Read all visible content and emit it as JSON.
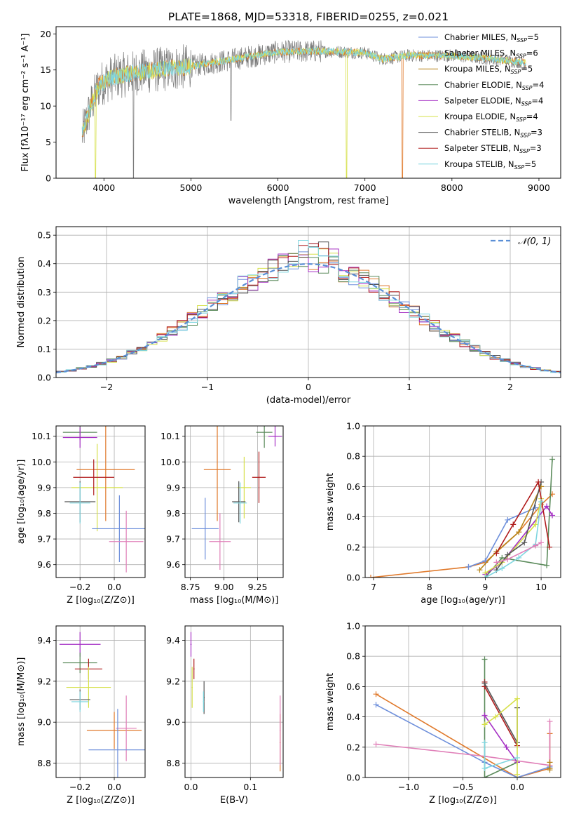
{
  "figure_title": "PLATE=1868, MJD=53318, FIBERID=0255, z=0.021",
  "colors": {
    "Chabrier MILES": "#6d8fdb",
    "Salpeter MILES": "#e07a2c",
    "Kroupa MILES": "#b8861b",
    "Chabrier ELODIE": "#5a8a5a",
    "Salpeter ELODIE": "#a52fc4",
    "Kroupa ELODIE": "#d6e04a",
    "Chabrier STELIB": "#555555",
    "Salpeter STELIB": "#b01c1c",
    "Kroupa STELIB": "#7fd6e0",
    "Extra": "#e07fb8"
  },
  "chart_data": [
    {
      "type": "line",
      "panel": "spectrum",
      "xlabel": "wavelength [Angstrom, rest frame]",
      "ylabel": "Flux [fλ10⁻¹⁷ erg cm⁻² s⁻¹ A⁻¹]",
      "xlim": [
        3450,
        9250
      ],
      "ylim": [
        0,
        21
      ],
      "xticks": [
        4000,
        5000,
        6000,
        7000,
        8000,
        9000
      ],
      "yticks": [
        0,
        5,
        10,
        15,
        20
      ],
      "legend_position": "top-right",
      "legend": [
        {
          "label": "Chabrier MILES, N",
          "sub": "SSP",
          "suffix": "=5"
        },
        {
          "label": "Salpeter MILES, N",
          "sub": "SSP",
          "suffix": "=6"
        },
        {
          "label": "Kroupa MILES, N",
          "sub": "SSP",
          "suffix": "=5"
        },
        {
          "label": "Chabrier ELODIE, N",
          "sub": "SSP",
          "suffix": "=4"
        },
        {
          "label": "Salpeter ELODIE, N",
          "sub": "SSP",
          "suffix": "=4"
        },
        {
          "label": "Kroupa ELODIE, N",
          "sub": "SSP",
          "suffix": "=4"
        },
        {
          "label": "Chabrier STELIB, N",
          "sub": "SSP",
          "suffix": "=3"
        },
        {
          "label": "Salpeter STELIB, N",
          "sub": "SSP",
          "suffix": "=3"
        },
        {
          "label": "Kroupa STELIB, N",
          "sub": "SSP",
          "suffix": "=5"
        }
      ],
      "data_range_x": [
        3750,
        8850
      ],
      "continuum": [
        [
          3750,
          6
        ],
        [
          3850,
          10
        ],
        [
          3950,
          13
        ],
        [
          4100,
          14
        ],
        [
          4300,
          14.5
        ],
        [
          4600,
          15
        ],
        [
          5000,
          15.5
        ],
        [
          5500,
          16.5
        ],
        [
          6000,
          17.5
        ],
        [
          6500,
          17.6
        ],
        [
          7000,
          17.4
        ],
        [
          7200,
          16.5
        ],
        [
          7500,
          17
        ],
        [
          8000,
          17
        ],
        [
          8500,
          16.5
        ],
        [
          8850,
          16
        ]
      ]
    },
    {
      "type": "line",
      "panel": "residual-histogram",
      "xlabel": "(data-model)/error",
      "ylabel": "Normed distribution",
      "xlim": [
        -2.5,
        2.5
      ],
      "ylim": [
        0,
        0.53
      ],
      "xticks": [
        -2,
        -1,
        0,
        1,
        2
      ],
      "xtick_labels": [
        "−2",
        "−1",
        "0",
        "1",
        "2"
      ],
      "yticks": [
        0.0,
        0.1,
        0.2,
        0.3,
        0.4,
        0.5
      ],
      "legend_position": "top-right",
      "legend": [
        {
          "label": "𝒩(0, 1)"
        }
      ],
      "bin_width": 0.1,
      "grid": true
    },
    {
      "type": "scatter",
      "panel": "age-vs-Z",
      "xlabel": "Z [log₁₀(Z/Z⊙)]",
      "ylabel": "age  [log₁₀(age/yr)]",
      "xlim": [
        -0.34,
        0.18
      ],
      "ylim": [
        9.55,
        10.14
      ],
      "xticks": [
        -0.2,
        0.0
      ],
      "xtick_labels": [
        "−0.2",
        "0.0"
      ],
      "yticks": [
        9.6,
        9.7,
        9.8,
        9.9,
        10.0,
        10.1
      ],
      "grid": true,
      "points": [
        {
          "c": "Chabrier ELODIE",
          "x": -0.2,
          "y": 10.115,
          "xerr": 0.1,
          "yerr": 0.03
        },
        {
          "c": "Salpeter ELODIE",
          "x": -0.2,
          "y": 10.095,
          "xerr": 0.1,
          "yerr": 0.04
        },
        {
          "c": "Kroupa ELODIE",
          "x": -0.1,
          "y": 9.9,
          "xerr": 0.15,
          "yerr": 0.17
        },
        {
          "c": "Salpeter MILES",
          "x": -0.05,
          "y": 9.97,
          "xerr": 0.17,
          "yerr": 0.2
        },
        {
          "c": "Salpeter STELIB",
          "x": -0.12,
          "y": 9.94,
          "xerr": 0.12,
          "yerr": 0.07
        },
        {
          "c": "Chabrier STELIB",
          "x": -0.2,
          "y": 9.845,
          "xerr": 0.09,
          "yerr": 0.08
        },
        {
          "c": "Kroupa STELIB",
          "x": -0.2,
          "y": 9.84,
          "xerr": 0.06,
          "yerr": 0.08
        },
        {
          "c": "Chabrier MILES",
          "x": 0.03,
          "y": 9.74,
          "xerr": 0.16,
          "yerr": 0.13
        },
        {
          "c": "Extra",
          "x": 0.07,
          "y": 9.69,
          "xerr": 0.1,
          "yerr": 0.12
        }
      ]
    },
    {
      "type": "scatter",
      "panel": "age-vs-mass",
      "xlabel": "mass [log₁₀(M/M⊙)]",
      "ylabel": "",
      "xlim": [
        8.71,
        9.44
      ],
      "ylim": [
        9.55,
        10.14
      ],
      "xticks": [
        8.75,
        9.0,
        9.25
      ],
      "xtick_labels": [
        "8.75",
        "9.00",
        "9.25"
      ],
      "yticks": [
        9.6,
        9.7,
        9.8,
        9.9,
        10.0,
        10.1
      ],
      "grid": true,
      "points": [
        {
          "c": "Chabrier ELODIE",
          "x": 9.3,
          "y": 10.115,
          "xerr": 0.06,
          "yerr": 0.06
        },
        {
          "c": "Salpeter ELODIE",
          "x": 9.38,
          "y": 10.1,
          "xerr": 0.05,
          "yerr": 0.04
        },
        {
          "c": "Kroupa ELODIE",
          "x": 9.15,
          "y": 9.9,
          "xerr": 0.05,
          "yerr": 0.12
        },
        {
          "c": "Salpeter STELIB",
          "x": 9.26,
          "y": 9.94,
          "xerr": 0.05,
          "yerr": 0.1
        },
        {
          "c": "Salpeter MILES",
          "x": 8.95,
          "y": 9.97,
          "xerr": 0.1,
          "yerr": 0.2
        },
        {
          "c": "Chabrier STELIB",
          "x": 9.11,
          "y": 9.845,
          "xerr": 0.05,
          "yerr": 0.08
        },
        {
          "c": "Kroupa STELIB",
          "x": 9.12,
          "y": 9.84,
          "xerr": 0.05,
          "yerr": 0.08
        },
        {
          "c": "Chabrier MILES",
          "x": 8.86,
          "y": 9.74,
          "xerr": 0.1,
          "yerr": 0.12
        },
        {
          "c": "Extra",
          "x": 8.97,
          "y": 9.69,
          "xerr": 0.08,
          "yerr": 0.11
        }
      ]
    },
    {
      "type": "line",
      "panel": "mass-weight-vs-age",
      "xlabel": "age  [log₁₀(age/yr)]",
      "ylabel": "mass weight",
      "xlim": [
        6.85,
        10.35
      ],
      "ylim": [
        0,
        1.0
      ],
      "xticks": [
        7,
        8,
        9,
        10
      ],
      "yticks": [
        0.0,
        0.2,
        0.4,
        0.6,
        0.8,
        1.0
      ],
      "grid": true,
      "series": [
        {
          "c": "Salpeter MILES",
          "x": [
            6.95,
            8.7,
            9.0,
            9.6,
            10.0,
            10.2
          ],
          "y": [
            0.0,
            0.07,
            0.1,
            0.3,
            0.48,
            0.55
          ]
        },
        {
          "c": "Chabrier MILES",
          "x": [
            8.7,
            9.0,
            9.4,
            9.9
          ],
          "y": [
            0.07,
            0.11,
            0.38,
            0.46
          ]
        },
        {
          "c": "Kroupa MILES",
          "x": [
            8.9,
            9.2,
            9.6,
            10.0
          ],
          "y": [
            0.05,
            0.17,
            0.3,
            0.6
          ]
        },
        {
          "c": "Chabrier ELODIE",
          "x": [
            9.0,
            9.3,
            10.1,
            10.2
          ],
          "y": [
            0.0,
            0.13,
            0.08,
            0.78
          ]
        },
        {
          "c": "Salpeter ELODIE",
          "x": [
            9.0,
            9.3,
            10.1,
            10.2
          ],
          "y": [
            0.02,
            0.1,
            0.47,
            0.41
          ]
        },
        {
          "c": "Kroupa ELODIE",
          "x": [
            9.0,
            9.3,
            9.9,
            10.0
          ],
          "y": [
            0.03,
            0.1,
            0.35,
            0.52
          ]
        },
        {
          "c": "Chabrier STELIB",
          "x": [
            9.2,
            9.4,
            9.7,
            10.0
          ],
          "y": [
            0.05,
            0.15,
            0.23,
            0.63
          ]
        },
        {
          "c": "Salpeter STELIB",
          "x": [
            9.2,
            9.5,
            9.95,
            10.15
          ],
          "y": [
            0.16,
            0.35,
            0.63,
            0.2
          ]
        },
        {
          "c": "Kroupa STELIB",
          "x": [
            9.0,
            9.3,
            9.6,
            9.9,
            10.0
          ],
          "y": [
            0.0,
            0.06,
            0.13,
            0.22,
            0.5
          ]
        },
        {
          "c": "Extra",
          "x": [
            9.2,
            9.4,
            9.9,
            10.0
          ],
          "y": [
            0.1,
            0.12,
            0.21,
            0.23
          ]
        }
      ]
    },
    {
      "type": "scatter",
      "panel": "mass-vs-Z",
      "xlabel": "Z [log₁₀(Z/Z⊙)]",
      "ylabel": "mass [log₁₀(M/M⊙)]",
      "xlim": [
        -0.34,
        0.18
      ],
      "ylim": [
        8.73,
        9.47
      ],
      "xticks": [
        -0.2,
        0.0
      ],
      "xtick_labels": [
        "−0.2",
        "0.0"
      ],
      "yticks": [
        8.8,
        9.0,
        9.2,
        9.4
      ],
      "grid": true,
      "points": [
        {
          "c": "Salpeter ELODIE",
          "x": -0.2,
          "y": 9.38,
          "xerr": 0.12,
          "yerr": 0.06
        },
        {
          "c": "Chabrier ELODIE",
          "x": -0.2,
          "y": 9.29,
          "xerr": 0.1,
          "yerr": 0.05
        },
        {
          "c": "Salpeter STELIB",
          "x": -0.15,
          "y": 9.26,
          "xerr": 0.08,
          "yerr": 0.05
        },
        {
          "c": "Kroupa ELODIE",
          "x": -0.15,
          "y": 9.17,
          "xerr": 0.13,
          "yerr": 0.1
        },
        {
          "c": "Chabrier STELIB",
          "x": -0.2,
          "y": 9.11,
          "xerr": 0.06,
          "yerr": 0.05
        },
        {
          "c": "Kroupa STELIB",
          "x": -0.2,
          "y": 9.1,
          "xerr": 0.05,
          "yerr": 0.05
        },
        {
          "c": "Salpeter MILES",
          "x": 0.0,
          "y": 8.96,
          "xerr": 0.16,
          "yerr": 0.09
        },
        {
          "c": "Extra",
          "x": 0.07,
          "y": 8.97,
          "xerr": 0.06,
          "yerr": 0.16
        },
        {
          "c": "Chabrier MILES",
          "x": 0.02,
          "y": 8.865,
          "xerr": 0.17,
          "yerr": 0.2
        }
      ]
    },
    {
      "type": "scatter",
      "panel": "mass-vs-EBV",
      "xlabel": "E(B-V)",
      "ylabel": "",
      "xlim": [
        -0.01,
        0.155
      ],
      "ylim": [
        8.73,
        9.47
      ],
      "xticks": [
        0.0,
        0.1
      ],
      "xtick_labels": [
        "0.0",
        "0.1"
      ],
      "yticks": [
        8.8,
        9.0,
        9.2,
        9.4
      ],
      "grid": true,
      "points": [
        {
          "c": "Salpeter ELODIE",
          "x": 0.0,
          "y": 9.38,
          "xerr": 0.001,
          "yerr": 0.06
        },
        {
          "c": "Salpeter STELIB",
          "x": 0.005,
          "y": 9.26,
          "xerr": 0.001,
          "yerr": 0.05
        },
        {
          "c": "Kroupa ELODIE",
          "x": 0.002,
          "y": 9.17,
          "xerr": 0.001,
          "yerr": 0.1
        },
        {
          "c": "Chabrier STELIB",
          "x": 0.022,
          "y": 9.12,
          "xerr": 0.001,
          "yerr": 0.08
        },
        {
          "c": "Kroupa STELIB",
          "x": 0.021,
          "y": 9.1,
          "xerr": 0.001,
          "yerr": 0.05
        },
        {
          "c": "Salpeter MILES",
          "x": 0.15,
          "y": 8.9,
          "xerr": 0.001,
          "yerr": 0.14
        },
        {
          "c": "Extra",
          "x": 0.15,
          "y": 8.96,
          "xerr": 0.001,
          "yerr": 0.17
        }
      ]
    },
    {
      "type": "line",
      "panel": "mass-weight-vs-Z",
      "xlabel": "Z [log₁₀(Z/Z⊙)]",
      "ylabel": "mass weight",
      "xlim": [
        -1.4,
        0.4
      ],
      "ylim": [
        0,
        1.0
      ],
      "xticks": [
        -1.0,
        -0.5,
        0.0
      ],
      "xtick_labels": [
        "−1.0",
        "−0.5",
        "0.0"
      ],
      "yticks": [
        0.0,
        0.2,
        0.4,
        0.6,
        0.8,
        1.0
      ],
      "grid": true,
      "series": [
        {
          "c": "Salpeter MILES",
          "x": [
            -1.3,
            0.0,
            0.3,
            0.3
          ],
          "y": [
            0.55,
            0.0,
            0.06,
            0.29
          ]
        },
        {
          "c": "Chabrier MILES",
          "x": [
            -1.3,
            -0.3,
            0.0,
            0.3
          ],
          "y": [
            0.48,
            0.1,
            0.0,
            0.07
          ]
        },
        {
          "c": "Extra",
          "x": [
            -1.3,
            -0.3,
            0.3,
            0.3
          ],
          "y": [
            0.22,
            0.14,
            0.08,
            0.37
          ]
        },
        {
          "c": "Chabrier ELODIE",
          "x": [
            -0.3,
            -0.3,
            0.0
          ],
          "y": [
            0.78,
            0.0,
            0.1
          ]
        },
        {
          "c": "Salpeter STELIB",
          "x": [
            -0.3,
            -0.3,
            0.0
          ],
          "y": [
            0.63,
            0.6,
            0.21
          ]
        },
        {
          "c": "Chabrier STELIB",
          "x": [
            -0.3,
            0.0,
            0.0
          ],
          "y": [
            0.62,
            0.23,
            0.46
          ]
        },
        {
          "c": "Salpeter ELODIE",
          "x": [
            -0.3,
            -0.1,
            0.0
          ],
          "y": [
            0.41,
            0.2,
            0.1
          ]
        },
        {
          "c": "Kroupa ELODIE",
          "x": [
            -0.3,
            -0.2,
            0.0,
            0.0
          ],
          "y": [
            0.35,
            0.4,
            0.52,
            0.02
          ]
        },
        {
          "c": "Kroupa STELIB",
          "x": [
            -0.3,
            -0.3,
            0.0
          ],
          "y": [
            0.23,
            0.06,
            0.13
          ]
        },
        {
          "c": "Kroupa MILES",
          "x": [
            0.3,
            0.3,
            0.3
          ],
          "y": [
            0.06,
            0.1,
            0.05
          ]
        }
      ]
    }
  ]
}
